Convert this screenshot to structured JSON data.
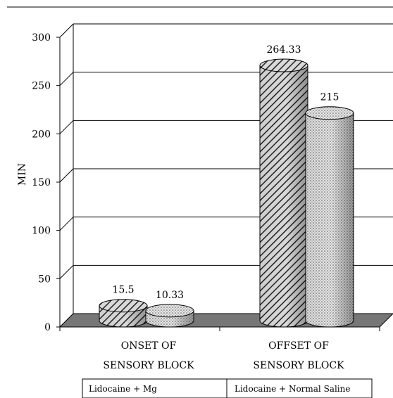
{
  "chart_data": {
    "type": "bar",
    "ylabel": "MIN",
    "ylim": [
      0,
      300
    ],
    "yticks": [
      0,
      50,
      100,
      150,
      200,
      250,
      300
    ],
    "grid": true,
    "categories": [
      {
        "line1": "ONSET OF",
        "line2": "SENSORY BLOCK"
      },
      {
        "line1": "OFFSET OF",
        "line2": "SENSORY BLOCK"
      }
    ],
    "series": [
      {
        "name": "Lidocaine + Mg",
        "values": [
          15.5,
          264.33
        ],
        "labels": [
          "15.5",
          "264.33"
        ],
        "pattern": "diagonal-hatch"
      },
      {
        "name": "Lidocaine + Normal Saline",
        "values": [
          10.33,
          215
        ],
        "labels": [
          "10.33",
          "215"
        ],
        "pattern": "dotted"
      }
    ],
    "legend_position": "bottom"
  }
}
